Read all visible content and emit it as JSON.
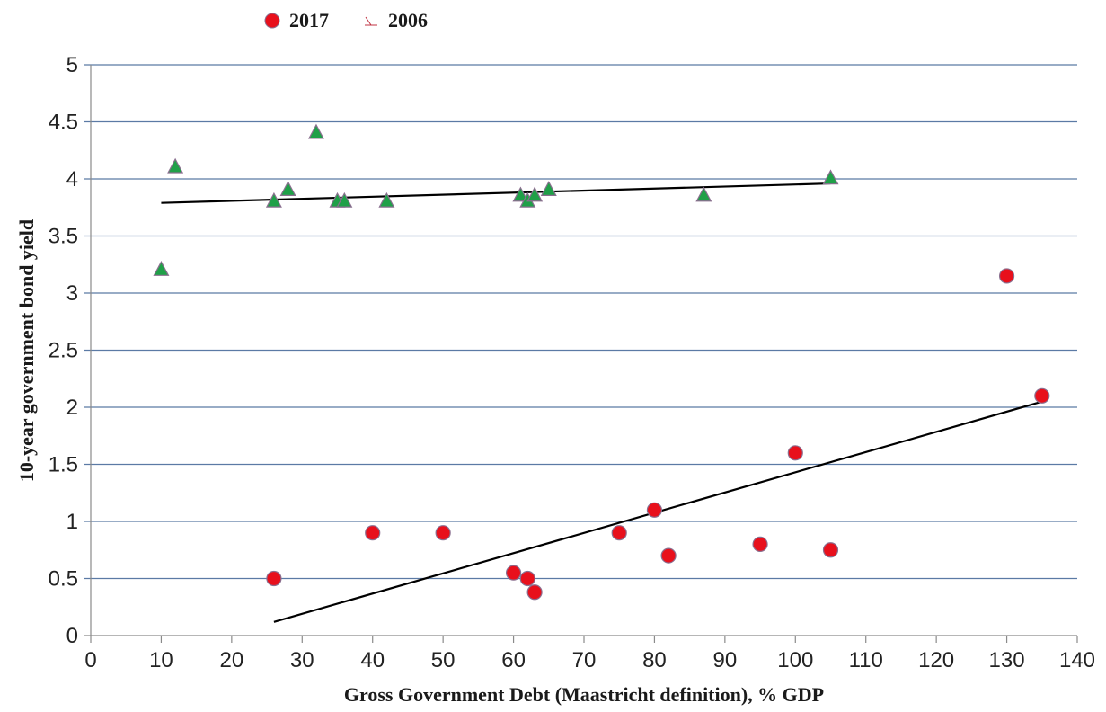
{
  "chart_data": {
    "type": "scatter",
    "title": "",
    "xlabel": "Gross Government Debt (Maastricht definition), % GDP",
    "ylabel": "10-year government bond yield",
    "xlim": [
      0,
      140
    ],
    "ylim": [
      0,
      5
    ],
    "x_ticks": [
      "0",
      "10",
      "20",
      "30",
      "40",
      "50",
      "60",
      "70",
      "80",
      "90",
      "100",
      "110",
      "120",
      "130",
      "140"
    ],
    "y_ticks": [
      "0",
      "0.5",
      "1",
      "1.5",
      "2",
      "2.5",
      "3",
      "3.5",
      "4",
      "4.5",
      "5"
    ],
    "grid": "horizontal",
    "legend_position": "top-left",
    "series": [
      {
        "name": "2017",
        "marker": "circle",
        "color": "#e8101c",
        "points": [
          {
            "x": 26,
            "y": 0.5
          },
          {
            "x": 40,
            "y": 0.9
          },
          {
            "x": 50,
            "y": 0.9
          },
          {
            "x": 60,
            "y": 0.55
          },
          {
            "x": 62,
            "y": 0.5
          },
          {
            "x": 63,
            "y": 0.38
          },
          {
            "x": 75,
            "y": 0.9
          },
          {
            "x": 80,
            "y": 1.1
          },
          {
            "x": 82,
            "y": 0.7
          },
          {
            "x": 95,
            "y": 0.8
          },
          {
            "x": 100,
            "y": 1.6
          },
          {
            "x": 105,
            "y": 0.75
          },
          {
            "x": 130,
            "y": 3.15
          },
          {
            "x": 135,
            "y": 2.1
          }
        ],
        "trendline": {
          "x": [
            26,
            135
          ],
          "y": [
            0.12,
            2.05
          ]
        }
      },
      {
        "name": "2006",
        "marker": "triangle",
        "color": "#1fa048",
        "points": [
          {
            "x": 10,
            "y": 3.2
          },
          {
            "x": 12,
            "y": 4.1
          },
          {
            "x": 26,
            "y": 3.8
          },
          {
            "x": 28,
            "y": 3.9
          },
          {
            "x": 32,
            "y": 4.4
          },
          {
            "x": 35,
            "y": 3.8
          },
          {
            "x": 36,
            "y": 3.8
          },
          {
            "x": 42,
            "y": 3.8
          },
          {
            "x": 61,
            "y": 3.85
          },
          {
            "x": 62,
            "y": 3.8
          },
          {
            "x": 63,
            "y": 3.85
          },
          {
            "x": 65,
            "y": 3.9
          },
          {
            "x": 87,
            "y": 3.85
          },
          {
            "x": 105,
            "y": 4.0
          }
        ],
        "trendline": {
          "x": [
            10,
            105
          ],
          "y": [
            3.79,
            3.96
          ]
        }
      }
    ]
  },
  "colors": {
    "grid": "#5b7aa5",
    "axis": "#8a8a8a",
    "trendline": "#000000",
    "marker_outline": "#8a6f8f",
    "legend_triangle_outline": "#c03040"
  }
}
